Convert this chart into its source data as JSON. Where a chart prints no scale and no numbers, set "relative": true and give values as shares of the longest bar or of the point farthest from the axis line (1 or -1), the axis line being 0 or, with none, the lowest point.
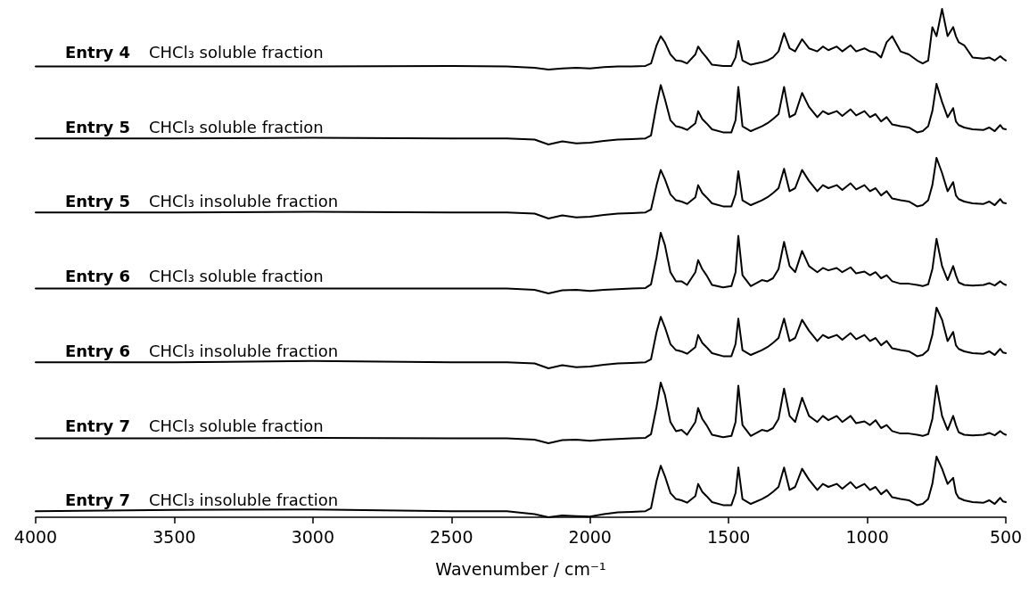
{
  "chart_data": [
    {
      "type": "line",
      "title": "Entry 4",
      "subtitle": "CHCl₃ soluble fraction",
      "relative": true,
      "xlim": [
        4000,
        500
      ],
      "tick_labels": false,
      "x": [
        4000,
        3500,
        3000,
        2500,
        2300,
        2200,
        2150,
        2100,
        2050,
        2000,
        1950,
        1900,
        1850,
        1800,
        1780,
        1760,
        1745,
        1730,
        1710,
        1690,
        1670,
        1650,
        1620,
        1610,
        1595,
        1580,
        1560,
        1520,
        1490,
        1475,
        1465,
        1450,
        1420,
        1380,
        1360,
        1340,
        1320,
        1300,
        1280,
        1260,
        1235,
        1210,
        1180,
        1160,
        1140,
        1110,
        1090,
        1060,
        1040,
        1010,
        990,
        970,
        950,
        930,
        910,
        880,
        850,
        820,
        800,
        780,
        765,
        750,
        730,
        710,
        690,
        680,
        670,
        650,
        620,
        580,
        560,
        540,
        520,
        510,
        500
      ],
      "series": [
        {
          "color": "#000000",
          "values": [
            0.05,
            0.05,
            0.05,
            0.06,
            0.05,
            0.03,
            0,
            0.02,
            0.03,
            0.02,
            0.04,
            0.05,
            0.05,
            0.06,
            0.1,
            0.4,
            0.55,
            0.45,
            0.25,
            0.15,
            0.14,
            0.1,
            0.25,
            0.38,
            0.28,
            0.2,
            0.08,
            0.06,
            0.06,
            0.2,
            0.47,
            0.15,
            0.08,
            0.12,
            0.15,
            0.2,
            0.3,
            0.6,
            0.35,
            0.3,
            0.5,
            0.35,
            0.3,
            0.38,
            0.32,
            0.38,
            0.3,
            0.4,
            0.3,
            0.35,
            0.3,
            0.28,
            0.2,
            0.45,
            0.55,
            0.3,
            0.25,
            0.15,
            0.1,
            0.15,
            0.7,
            0.55,
            1,
            0.55,
            0.7,
            0.55,
            0.45,
            0.4,
            0.2,
            0.18,
            0.2,
            0.15,
            0.22,
            0.18,
            0.15
          ]
        }
      ]
    },
    {
      "type": "line",
      "title": "Entry 5",
      "subtitle": "CHCl₃ soluble fraction",
      "relative": true,
      "xlim": [
        4000,
        500
      ],
      "tick_labels": false,
      "x": [
        4000,
        3500,
        3000,
        2500,
        2300,
        2200,
        2150,
        2100,
        2050,
        2000,
        1950,
        1900,
        1850,
        1800,
        1780,
        1760,
        1745,
        1730,
        1710,
        1690,
        1670,
        1650,
        1620,
        1610,
        1595,
        1580,
        1560,
        1520,
        1490,
        1475,
        1465,
        1450,
        1420,
        1380,
        1360,
        1340,
        1320,
        1300,
        1280,
        1260,
        1235,
        1210,
        1180,
        1160,
        1140,
        1110,
        1090,
        1060,
        1040,
        1010,
        990,
        970,
        950,
        930,
        910,
        880,
        850,
        820,
        800,
        780,
        765,
        750,
        730,
        710,
        690,
        680,
        670,
        650,
        620,
        580,
        560,
        540,
        520,
        510,
        500
      ],
      "series": [
        {
          "color": "#000000",
          "values": [
            0.1,
            0.1,
            0.11,
            0.1,
            0.1,
            0.08,
            0,
            0.05,
            0.02,
            0.03,
            0.06,
            0.08,
            0.09,
            0.1,
            0.15,
            0.65,
            0.98,
            0.75,
            0.4,
            0.3,
            0.28,
            0.24,
            0.35,
            0.55,
            0.42,
            0.35,
            0.25,
            0.2,
            0.2,
            0.4,
            0.95,
            0.3,
            0.22,
            0.3,
            0.35,
            0.42,
            0.5,
            0.95,
            0.45,
            0.5,
            0.85,
            0.62,
            0.45,
            0.55,
            0.5,
            0.55,
            0.47,
            0.58,
            0.48,
            0.55,
            0.45,
            0.5,
            0.38,
            0.45,
            0.33,
            0.3,
            0.28,
            0.2,
            0.22,
            0.3,
            0.55,
            1,
            0.7,
            0.45,
            0.6,
            0.38,
            0.32,
            0.28,
            0.25,
            0.24,
            0.28,
            0.22,
            0.32,
            0.26,
            0.25
          ]
        }
      ]
    },
    {
      "type": "line",
      "title": "Entry 5",
      "subtitle": "CHCl₃ insoluble fraction",
      "relative": true,
      "xlim": [
        4000,
        500
      ],
      "tick_labels": false,
      "x": [
        4000,
        3500,
        3000,
        2500,
        2300,
        2200,
        2150,
        2100,
        2050,
        2000,
        1950,
        1900,
        1850,
        1800,
        1780,
        1760,
        1745,
        1730,
        1710,
        1690,
        1670,
        1650,
        1620,
        1610,
        1595,
        1580,
        1560,
        1520,
        1490,
        1475,
        1465,
        1450,
        1420,
        1380,
        1360,
        1340,
        1320,
        1300,
        1280,
        1260,
        1235,
        1210,
        1180,
        1160,
        1140,
        1110,
        1090,
        1060,
        1040,
        1010,
        990,
        970,
        950,
        930,
        910,
        880,
        850,
        820,
        800,
        780,
        765,
        750,
        730,
        710,
        690,
        680,
        670,
        650,
        620,
        580,
        560,
        540,
        520,
        510,
        500
      ],
      "series": [
        {
          "color": "#000000",
          "values": [
            0.1,
            0.1,
            0.11,
            0.1,
            0.1,
            0.08,
            0,
            0.05,
            0.02,
            0.03,
            0.06,
            0.08,
            0.09,
            0.1,
            0.15,
            0.55,
            0.8,
            0.65,
            0.4,
            0.3,
            0.28,
            0.24,
            0.35,
            0.55,
            0.42,
            0.35,
            0.25,
            0.2,
            0.2,
            0.4,
            0.78,
            0.3,
            0.22,
            0.3,
            0.35,
            0.42,
            0.5,
            0.82,
            0.45,
            0.5,
            0.8,
            0.62,
            0.45,
            0.55,
            0.5,
            0.55,
            0.47,
            0.58,
            0.48,
            0.55,
            0.45,
            0.5,
            0.38,
            0.45,
            0.33,
            0.3,
            0.28,
            0.2,
            0.22,
            0.3,
            0.55,
            1,
            0.75,
            0.45,
            0.6,
            0.38,
            0.32,
            0.28,
            0.25,
            0.24,
            0.28,
            0.22,
            0.32,
            0.26,
            0.25
          ]
        }
      ]
    },
    {
      "type": "line",
      "title": "Entry 6",
      "subtitle": "CHCl₃ soluble fraction",
      "relative": true,
      "xlim": [
        4000,
        500
      ],
      "tick_labels": false,
      "x": [
        4000,
        3500,
        3000,
        2500,
        2300,
        2200,
        2150,
        2100,
        2050,
        2000,
        1950,
        1900,
        1850,
        1800,
        1780,
        1760,
        1745,
        1730,
        1710,
        1690,
        1670,
        1650,
        1620,
        1610,
        1595,
        1580,
        1560,
        1520,
        1490,
        1475,
        1465,
        1450,
        1420,
        1380,
        1360,
        1340,
        1320,
        1300,
        1280,
        1260,
        1235,
        1210,
        1180,
        1160,
        1140,
        1110,
        1090,
        1060,
        1040,
        1010,
        990,
        970,
        950,
        930,
        910,
        880,
        850,
        820,
        800,
        780,
        765,
        750,
        730,
        710,
        690,
        680,
        670,
        650,
        620,
        580,
        560,
        540,
        520,
        510,
        500
      ],
      "series": [
        {
          "color": "#000000",
          "values": [
            0.08,
            0.08,
            0.08,
            0.08,
            0.08,
            0.06,
            0,
            0.05,
            0.06,
            0.04,
            0.06,
            0.07,
            0.08,
            0.09,
            0.15,
            0.6,
            1,
            0.8,
            0.35,
            0.2,
            0.2,
            0.14,
            0.35,
            0.55,
            0.4,
            0.3,
            0.14,
            0.1,
            0.12,
            0.35,
            0.95,
            0.3,
            0.12,
            0.22,
            0.2,
            0.25,
            0.4,
            0.85,
            0.45,
            0.35,
            0.7,
            0.45,
            0.35,
            0.42,
            0.38,
            0.42,
            0.35,
            0.43,
            0.33,
            0.36,
            0.3,
            0.35,
            0.25,
            0.3,
            0.2,
            0.16,
            0.16,
            0.14,
            0.12,
            0.15,
            0.4,
            0.9,
            0.45,
            0.22,
            0.45,
            0.3,
            0.18,
            0.14,
            0.13,
            0.14,
            0.17,
            0.13,
            0.2,
            0.16,
            0.14
          ]
        }
      ]
    },
    {
      "type": "line",
      "title": "Entry 6",
      "subtitle": "CHCl₃ insoluble fraction",
      "relative": true,
      "xlim": [
        4000,
        500
      ],
      "tick_labels": false,
      "x": [
        4000,
        3500,
        3000,
        2500,
        2300,
        2200,
        2150,
        2100,
        2050,
        2000,
        1950,
        1900,
        1850,
        1800,
        1780,
        1760,
        1745,
        1730,
        1710,
        1690,
        1670,
        1650,
        1620,
        1610,
        1595,
        1580,
        1560,
        1520,
        1490,
        1475,
        1465,
        1450,
        1420,
        1380,
        1360,
        1340,
        1320,
        1300,
        1280,
        1260,
        1235,
        1210,
        1180,
        1160,
        1140,
        1110,
        1090,
        1060,
        1040,
        1010,
        990,
        970,
        950,
        930,
        910,
        880,
        850,
        820,
        800,
        780,
        765,
        750,
        730,
        710,
        690,
        680,
        670,
        650,
        620,
        580,
        560,
        540,
        520,
        510,
        500
      ],
      "series": [
        {
          "color": "#000000",
          "values": [
            0.1,
            0.1,
            0.12,
            0.1,
            0.1,
            0.08,
            0,
            0.05,
            0.02,
            0.03,
            0.06,
            0.08,
            0.09,
            0.1,
            0.15,
            0.6,
            0.85,
            0.68,
            0.4,
            0.3,
            0.28,
            0.24,
            0.35,
            0.55,
            0.42,
            0.35,
            0.25,
            0.2,
            0.2,
            0.4,
            0.82,
            0.3,
            0.22,
            0.3,
            0.35,
            0.42,
            0.5,
            0.82,
            0.45,
            0.5,
            0.8,
            0.62,
            0.45,
            0.55,
            0.5,
            0.55,
            0.47,
            0.58,
            0.48,
            0.55,
            0.45,
            0.5,
            0.38,
            0.45,
            0.33,
            0.3,
            0.28,
            0.2,
            0.22,
            0.3,
            0.55,
            1,
            0.8,
            0.45,
            0.6,
            0.38,
            0.32,
            0.28,
            0.25,
            0.24,
            0.28,
            0.22,
            0.32,
            0.26,
            0.25
          ]
        }
      ]
    },
    {
      "type": "line",
      "title": "Entry 7",
      "subtitle": "CHCl₃ soluble fraction",
      "relative": true,
      "xlim": [
        4000,
        500
      ],
      "tick_labels": false,
      "x": [
        4000,
        3500,
        3000,
        2500,
        2300,
        2200,
        2150,
        2100,
        2050,
        2000,
        1950,
        1900,
        1850,
        1800,
        1780,
        1760,
        1745,
        1730,
        1710,
        1690,
        1670,
        1650,
        1620,
        1610,
        1595,
        1580,
        1560,
        1520,
        1490,
        1475,
        1465,
        1450,
        1420,
        1380,
        1360,
        1340,
        1320,
        1300,
        1280,
        1260,
        1235,
        1210,
        1180,
        1160,
        1140,
        1110,
        1090,
        1060,
        1040,
        1010,
        990,
        970,
        950,
        930,
        910,
        880,
        850,
        820,
        800,
        780,
        765,
        750,
        730,
        710,
        690,
        680,
        670,
        650,
        620,
        580,
        560,
        540,
        520,
        510,
        500
      ],
      "series": [
        {
          "color": "#000000",
          "values": [
            0.08,
            0.08,
            0.09,
            0.08,
            0.08,
            0.06,
            0,
            0.05,
            0.06,
            0.04,
            0.06,
            0.07,
            0.08,
            0.09,
            0.15,
            0.6,
            1,
            0.8,
            0.35,
            0.2,
            0.22,
            0.14,
            0.35,
            0.58,
            0.4,
            0.3,
            0.14,
            0.1,
            0.12,
            0.35,
            0.95,
            0.3,
            0.12,
            0.22,
            0.2,
            0.25,
            0.4,
            0.9,
            0.45,
            0.35,
            0.75,
            0.45,
            0.35,
            0.45,
            0.38,
            0.45,
            0.35,
            0.45,
            0.33,
            0.36,
            0.3,
            0.38,
            0.25,
            0.3,
            0.2,
            0.16,
            0.16,
            0.14,
            0.12,
            0.15,
            0.4,
            0.95,
            0.45,
            0.22,
            0.45,
            0.3,
            0.18,
            0.14,
            0.13,
            0.14,
            0.17,
            0.13,
            0.2,
            0.16,
            0.14
          ]
        }
      ]
    },
    {
      "type": "line",
      "title": "Entry 7",
      "subtitle": "CHCl₃ insoluble fraction",
      "relative": true,
      "xlim": [
        4000,
        500
      ],
      "tick_labels": "x",
      "xlabel": "Wavenumber / cm⁻¹",
      "xticks": [
        4000,
        3500,
        3000,
        2500,
        2000,
        1500,
        1000,
        500
      ],
      "x": [
        4000,
        3500,
        3000,
        2500,
        2300,
        2200,
        2150,
        2100,
        2050,
        2000,
        1950,
        1900,
        1850,
        1800,
        1780,
        1760,
        1745,
        1730,
        1710,
        1690,
        1670,
        1650,
        1620,
        1610,
        1595,
        1580,
        1560,
        1520,
        1490,
        1475,
        1465,
        1450,
        1420,
        1380,
        1360,
        1340,
        1320,
        1300,
        1280,
        1260,
        1235,
        1210,
        1180,
        1160,
        1140,
        1110,
        1090,
        1060,
        1040,
        1010,
        990,
        970,
        950,
        930,
        910,
        880,
        850,
        820,
        800,
        780,
        765,
        750,
        730,
        710,
        690,
        680,
        670,
        650,
        620,
        580,
        560,
        540,
        520,
        510,
        500
      ],
      "series": [
        {
          "color": "#000000",
          "values": [
            0.1,
            0.12,
            0.13,
            0.1,
            0.1,
            0.05,
            0,
            0.03,
            0.02,
            0.01,
            0.05,
            0.08,
            0.09,
            0.1,
            0.15,
            0.6,
            0.85,
            0.68,
            0.4,
            0.3,
            0.28,
            0.24,
            0.35,
            0.55,
            0.42,
            0.35,
            0.25,
            0.2,
            0.2,
            0.4,
            0.82,
            0.3,
            0.22,
            0.3,
            0.35,
            0.42,
            0.5,
            0.82,
            0.45,
            0.5,
            0.8,
            0.62,
            0.45,
            0.55,
            0.5,
            0.55,
            0.47,
            0.58,
            0.48,
            0.55,
            0.45,
            0.5,
            0.38,
            0.45,
            0.33,
            0.3,
            0.28,
            0.2,
            0.22,
            0.3,
            0.55,
            1,
            0.8,
            0.55,
            0.65,
            0.4,
            0.32,
            0.28,
            0.25,
            0.24,
            0.28,
            0.22,
            0.32,
            0.26,
            0.25
          ]
        }
      ]
    }
  ]
}
